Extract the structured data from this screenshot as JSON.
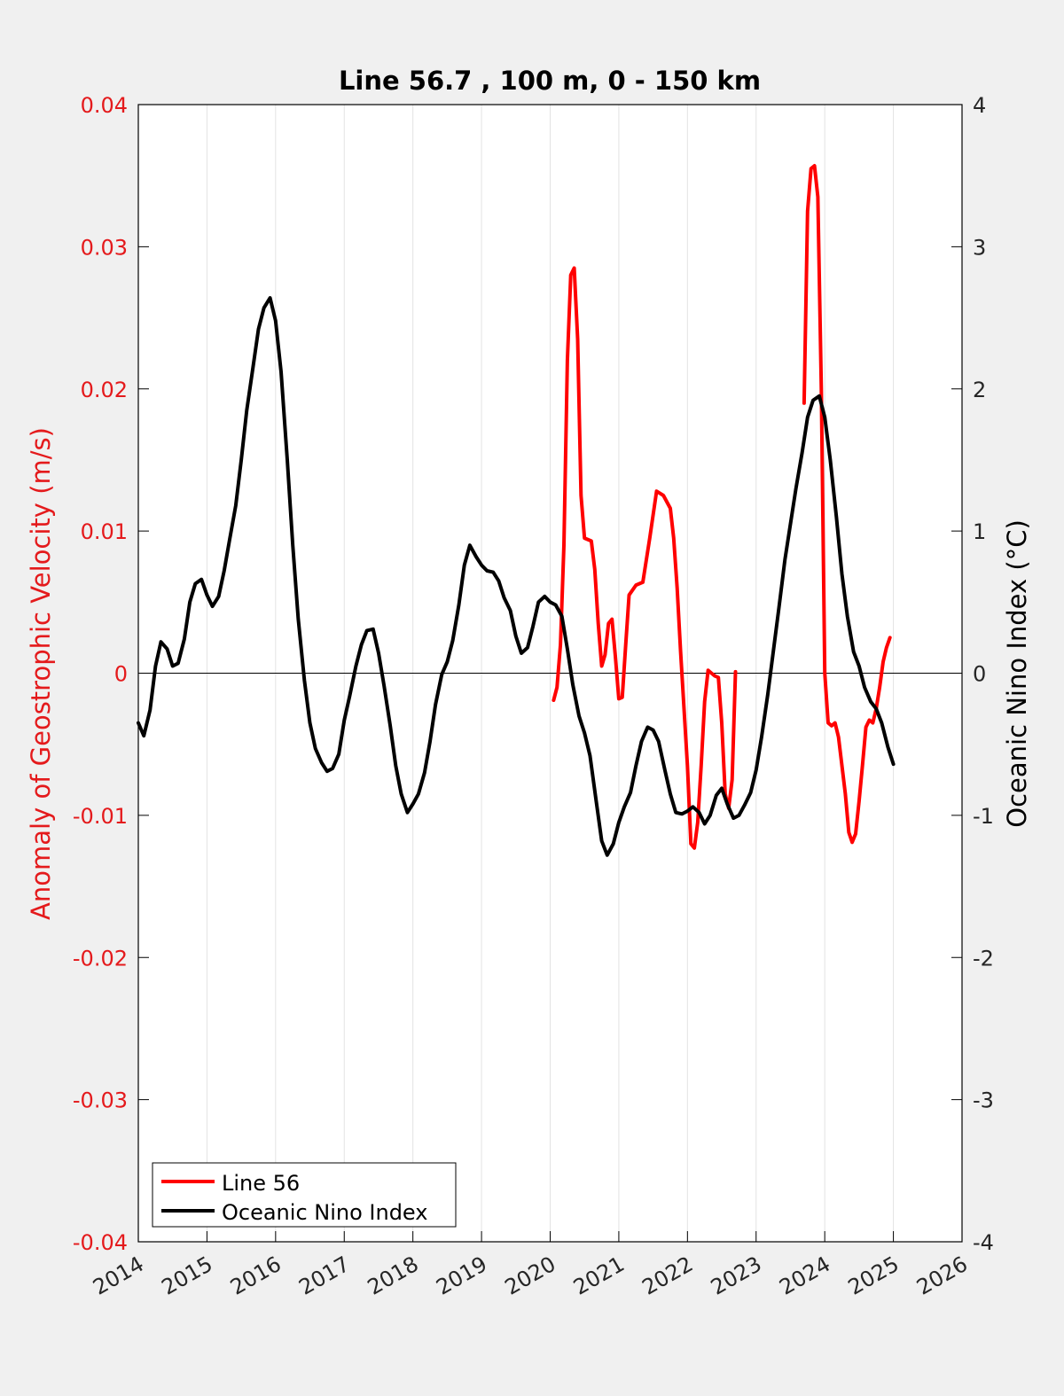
{
  "chart_data": {
    "type": "line",
    "title": "Line 56.7 , 100 m, 0 - 150 km",
    "ylabel_left": "Anomaly of Geostrophic Velocity (m/s)",
    "ylabel_right": "Oceanic Nino Index (°C)",
    "xlabel": "",
    "xlim": [
      2014,
      2026
    ],
    "ylim_left": [
      -0.04,
      0.04
    ],
    "ylim_right": [
      -4,
      4
    ],
    "x_ticks": [
      "2014",
      "2015",
      "2016",
      "2017",
      "2018",
      "2019",
      "2020",
      "2021",
      "2022",
      "2023",
      "2024",
      "2025",
      "2026"
    ],
    "y_left_ticks": [
      "-0.04",
      "-0.03",
      "-0.02",
      "-0.01",
      "0",
      "0.01",
      "0.02",
      "0.03",
      "0.04"
    ],
    "y_right_ticks": [
      "-4",
      "-3",
      "-2",
      "-1",
      "0",
      "1",
      "2",
      "3",
      "4"
    ],
    "grid": "vertical",
    "zero_line": true,
    "legend_placement": "bottom-left",
    "left_axis_color": "#e41a1c",
    "series": [
      {
        "name": "Line 56",
        "color": "#ff0000",
        "axis": "left",
        "segments": [
          [
            [
              2020.05,
              -0.0019
            ],
            [
              2020.1,
              -0.001
            ],
            [
              2020.15,
              0.002
            ],
            [
              2020.2,
              0.009
            ],
            [
              2020.25,
              0.022
            ],
            [
              2020.3,
              0.028
            ],
            [
              2020.35,
              0.0285
            ],
            [
              2020.4,
              0.0235
            ],
            [
              2020.45,
              0.0125
            ],
            [
              2020.5,
              0.0095
            ],
            [
              2020.6,
              0.0093
            ],
            [
              2020.65,
              0.0073
            ],
            [
              2020.7,
              0.0035
            ],
            [
              2020.75,
              0.0005
            ],
            [
              2020.8,
              0.0013
            ],
            [
              2020.85,
              0.0035
            ],
            [
              2020.9,
              0.0038
            ],
            [
              2020.95,
              0.0012
            ],
            [
              2021.0,
              -0.0018
            ],
            [
              2021.05,
              -0.0017
            ],
            [
              2021.1,
              0.002
            ],
            [
              2021.15,
              0.0055
            ],
            [
              2021.25,
              0.0062
            ],
            [
              2021.35,
              0.0064
            ],
            [
              2021.45,
              0.0095
            ],
            [
              2021.55,
              0.0128
            ],
            [
              2021.65,
              0.0125
            ],
            [
              2021.75,
              0.0116
            ],
            [
              2021.8,
              0.0095
            ],
            [
              2021.85,
              0.006
            ],
            [
              2021.9,
              0.0015
            ],
            [
              2022.0,
              -0.0065
            ],
            [
              2022.05,
              -0.012
            ],
            [
              2022.1,
              -0.0123
            ],
            [
              2022.15,
              -0.0105
            ],
            [
              2022.2,
              -0.0065
            ],
            [
              2022.25,
              -0.002
            ],
            [
              2022.3,
              0.0002
            ],
            [
              2022.35,
              0.0
            ],
            [
              2022.4,
              -0.0002
            ],
            [
              2022.45,
              -0.0003
            ],
            [
              2022.5,
              -0.0035
            ],
            [
              2022.55,
              -0.0085
            ],
            [
              2022.6,
              -0.0095
            ],
            [
              2022.65,
              -0.0075
            ],
            [
              2022.7,
              0.0001
            ]
          ],
          [
            [
              2023.7,
              0.019
            ],
            [
              2023.75,
              0.0325
            ],
            [
              2023.8,
              0.0355
            ],
            [
              2023.85,
              0.0357
            ],
            [
              2023.9,
              0.0335
            ],
            [
              2023.95,
              0.02
            ],
            [
              2024.0,
              0.0
            ],
            [
              2024.05,
              -0.0035
            ],
            [
              2024.1,
              -0.0037
            ],
            [
              2024.15,
              -0.0035
            ],
            [
              2024.2,
              -0.0045
            ],
            [
              2024.3,
              -0.0085
            ],
            [
              2024.35,
              -0.0112
            ],
            [
              2024.4,
              -0.0119
            ],
            [
              2024.45,
              -0.0113
            ],
            [
              2024.5,
              -0.009
            ],
            [
              2024.55,
              -0.0065
            ],
            [
              2024.6,
              -0.0038
            ],
            [
              2024.65,
              -0.0033
            ],
            [
              2024.7,
              -0.0035
            ],
            [
              2024.75,
              -0.0025
            ],
            [
              2024.8,
              -0.001
            ],
            [
              2024.85,
              0.0008
            ],
            [
              2024.9,
              0.0018
            ],
            [
              2024.95,
              0.0025
            ]
          ]
        ]
      },
      {
        "name": "Oceanic Nino Index",
        "color": "#000000",
        "axis": "right",
        "segments": [
          [
            [
              2014.0,
              -0.35
            ],
            [
              2014.08,
              -0.44
            ],
            [
              2014.17,
              -0.26
            ],
            [
              2014.25,
              0.05
            ],
            [
              2014.33,
              0.22
            ],
            [
              2014.42,
              0.17
            ],
            [
              2014.5,
              0.05
            ],
            [
              2014.58,
              0.07
            ],
            [
              2014.67,
              0.24
            ],
            [
              2014.75,
              0.5
            ],
            [
              2014.83,
              0.63
            ],
            [
              2014.92,
              0.66
            ],
            [
              2015.0,
              0.55
            ],
            [
              2015.08,
              0.47
            ],
            [
              2015.17,
              0.54
            ],
            [
              2015.25,
              0.72
            ],
            [
              2015.33,
              0.94
            ],
            [
              2015.42,
              1.18
            ],
            [
              2015.5,
              1.5
            ],
            [
              2015.58,
              1.85
            ],
            [
              2015.67,
              2.15
            ],
            [
              2015.75,
              2.42
            ],
            [
              2015.83,
              2.57
            ],
            [
              2015.92,
              2.64
            ],
            [
              2016.0,
              2.48
            ],
            [
              2016.08,
              2.12
            ],
            [
              2016.17,
              1.5
            ],
            [
              2016.25,
              0.9
            ],
            [
              2016.33,
              0.38
            ],
            [
              2016.42,
              -0.05
            ],
            [
              2016.5,
              -0.35
            ],
            [
              2016.58,
              -0.53
            ],
            [
              2016.67,
              -0.63
            ],
            [
              2016.75,
              -0.69
            ],
            [
              2016.83,
              -0.67
            ],
            [
              2016.92,
              -0.57
            ],
            [
              2017.0,
              -0.33
            ],
            [
              2017.08,
              -0.16
            ],
            [
              2017.17,
              0.05
            ],
            [
              2017.25,
              0.2
            ],
            [
              2017.33,
              0.3
            ],
            [
              2017.42,
              0.31
            ],
            [
              2017.5,
              0.14
            ],
            [
              2017.58,
              -0.09
            ],
            [
              2017.67,
              -0.37
            ],
            [
              2017.75,
              -0.65
            ],
            [
              2017.83,
              -0.85
            ],
            [
              2017.92,
              -0.98
            ],
            [
              2018.0,
              -0.92
            ],
            [
              2018.08,
              -0.85
            ],
            [
              2018.17,
              -0.7
            ],
            [
              2018.25,
              -0.48
            ],
            [
              2018.33,
              -0.22
            ],
            [
              2018.42,
              -0.01
            ],
            [
              2018.5,
              0.08
            ],
            [
              2018.58,
              0.23
            ],
            [
              2018.67,
              0.48
            ],
            [
              2018.75,
              0.76
            ],
            [
              2018.83,
              0.9
            ],
            [
              2018.92,
              0.82
            ],
            [
              2019.0,
              0.76
            ],
            [
              2019.08,
              0.72
            ],
            [
              2019.17,
              0.71
            ],
            [
              2019.25,
              0.65
            ],
            [
              2019.33,
              0.53
            ],
            [
              2019.42,
              0.44
            ],
            [
              2019.5,
              0.26
            ],
            [
              2019.58,
              0.14
            ],
            [
              2019.67,
              0.18
            ],
            [
              2019.75,
              0.33
            ],
            [
              2019.83,
              0.5
            ],
            [
              2019.92,
              0.54
            ],
            [
              2020.0,
              0.5
            ],
            [
              2020.08,
              0.48
            ],
            [
              2020.17,
              0.4
            ],
            [
              2020.25,
              0.17
            ],
            [
              2020.33,
              -0.08
            ],
            [
              2020.42,
              -0.3
            ],
            [
              2020.5,
              -0.42
            ],
            [
              2020.58,
              -0.58
            ],
            [
              2020.67,
              -0.9
            ],
            [
              2020.75,
              -1.18
            ],
            [
              2020.83,
              -1.28
            ],
            [
              2020.92,
              -1.2
            ],
            [
              2021.0,
              -1.05
            ],
            [
              2021.08,
              -0.94
            ],
            [
              2021.17,
              -0.84
            ],
            [
              2021.25,
              -0.65
            ],
            [
              2021.33,
              -0.48
            ],
            [
              2021.42,
              -0.38
            ],
            [
              2021.5,
              -0.4
            ],
            [
              2021.58,
              -0.48
            ],
            [
              2021.67,
              -0.68
            ],
            [
              2021.75,
              -0.85
            ],
            [
              2021.83,
              -0.98
            ],
            [
              2021.92,
              -0.99
            ],
            [
              2022.0,
              -0.97
            ],
            [
              2022.08,
              -0.94
            ],
            [
              2022.17,
              -0.98
            ],
            [
              2022.25,
              -1.06
            ],
            [
              2022.33,
              -1.0
            ],
            [
              2022.42,
              -0.86
            ],
            [
              2022.5,
              -0.81
            ],
            [
              2022.58,
              -0.92
            ],
            [
              2022.67,
              -1.02
            ],
            [
              2022.75,
              -1.0
            ],
            [
              2022.83,
              -0.93
            ],
            [
              2022.92,
              -0.84
            ],
            [
              2023.0,
              -0.68
            ],
            [
              2023.08,
              -0.45
            ],
            [
              2023.17,
              -0.15
            ],
            [
              2023.25,
              0.15
            ],
            [
              2023.33,
              0.45
            ],
            [
              2023.42,
              0.8
            ],
            [
              2023.5,
              1.05
            ],
            [
              2023.58,
              1.3
            ],
            [
              2023.67,
              1.55
            ],
            [
              2023.75,
              1.8
            ],
            [
              2023.83,
              1.92
            ],
            [
              2023.92,
              1.95
            ],
            [
              2024.0,
              1.8
            ],
            [
              2024.08,
              1.5
            ],
            [
              2024.17,
              1.1
            ],
            [
              2024.25,
              0.7
            ],
            [
              2024.33,
              0.4
            ],
            [
              2024.42,
              0.15
            ],
            [
              2024.5,
              0.05
            ],
            [
              2024.58,
              -0.1
            ],
            [
              2024.67,
              -0.2
            ],
            [
              2024.75,
              -0.25
            ],
            [
              2024.83,
              -0.35
            ],
            [
              2024.92,
              -0.52
            ],
            [
              2025.0,
              -0.64
            ]
          ]
        ]
      }
    ]
  }
}
